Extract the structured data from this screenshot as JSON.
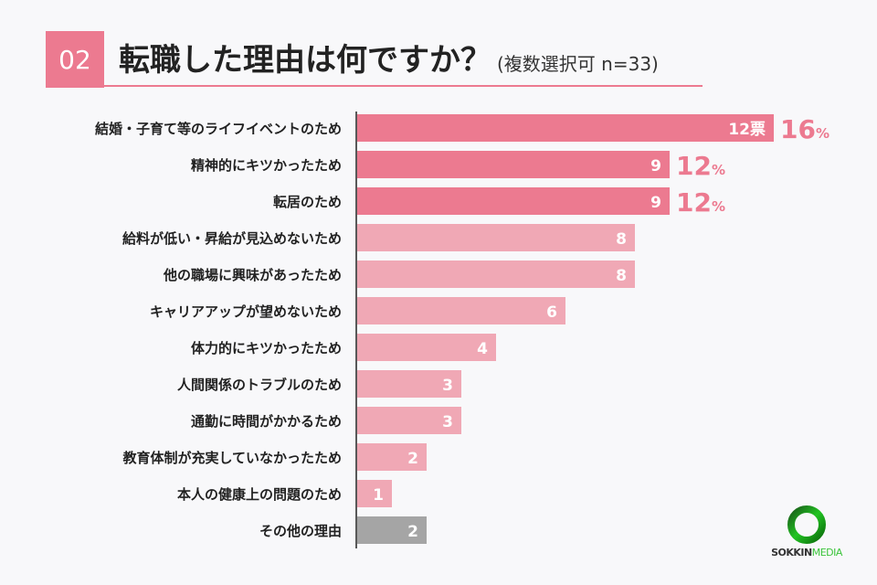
{
  "header": {
    "number": "02",
    "title": "転職した理由は何ですか？",
    "subtitle": "(複数選択可 n=33)"
  },
  "colors": {
    "highlight": "#ec7a90",
    "normal": "#f0a8b5",
    "other": "#a5a5a5",
    "percent": "#ec7a90"
  },
  "chart_data": {
    "type": "bar",
    "orientation": "horizontal",
    "title": "転職した理由は何ですか？",
    "categories": [
      "結婚・子育て等のライフイベントのため",
      "精神的にキツかったため",
      "転居のため",
      "給料が低い・昇給が見込めないため",
      "他の職場に興味があったため",
      "キャリアアップが望めないため",
      "体力的にキツかったため",
      "人間関係のトラブルのため",
      "通勤に時間がかかるため",
      "教育体制が充実していなかったため",
      "本人の健康上の問題のため",
      "その他の理由"
    ],
    "values": [
      12,
      9,
      9,
      8,
      8,
      6,
      4,
      3,
      3,
      2,
      1,
      2
    ],
    "value_labels": [
      "12票",
      "9",
      "9",
      "8",
      "8",
      "6",
      "4",
      "3",
      "3",
      "2",
      "1",
      "2"
    ],
    "percent_labels": [
      "16",
      "12",
      "12"
    ],
    "percent_unit": "%",
    "xlim": [
      0,
      12
    ]
  },
  "logo": {
    "text_dark": "SOKKIN",
    "text_green": "MEDIA"
  }
}
